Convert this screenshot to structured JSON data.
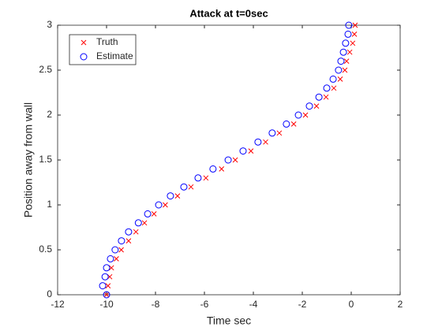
{
  "chart_data": {
    "type": "scatter",
    "title": "Attack at t=0sec",
    "x_label": "Time sec",
    "y_label": "Position away from wall",
    "xlim": [
      -12,
      2
    ],
    "ylim": [
      0,
      3
    ],
    "xticks": [
      -12,
      -10,
      -8,
      -6,
      -4,
      -2,
      0,
      2
    ],
    "yticks": [
      0,
      0.5,
      1,
      1.5,
      2,
      2.5,
      3
    ],
    "legend": "upper left",
    "grid": false,
    "series": [
      {
        "name": "Truth",
        "color": "#ff0000",
        "marker": "x",
        "x": [
          -10.0,
          -9.94,
          -9.87,
          -9.8,
          -9.6,
          -9.4,
          -9.1,
          -8.8,
          -8.45,
          -8.06,
          -7.6,
          -7.1,
          -6.55,
          -5.94,
          -5.3,
          -4.74,
          -4.1,
          -3.5,
          -2.94,
          -2.35,
          -1.87,
          -1.42,
          -1.03,
          -0.71,
          -0.45,
          -0.26,
          -0.19,
          -0.06,
          0.06,
          0.13,
          0.16
        ],
        "y": [
          0,
          0.1,
          0.2,
          0.3,
          0.4,
          0.5,
          0.6,
          0.7,
          0.8,
          0.9,
          1.0,
          1.1,
          1.2,
          1.3,
          1.4,
          1.5,
          1.6,
          1.7,
          1.8,
          1.9,
          2.0,
          2.1,
          2.2,
          2.3,
          2.4,
          2.5,
          2.6,
          2.7,
          2.8,
          2.9,
          3.0
        ]
      },
      {
        "name": "Estimate",
        "color": "#0000ff",
        "marker": "o",
        "x": [
          -10.0,
          -10.16,
          -10.06,
          -10.0,
          -9.84,
          -9.65,
          -9.39,
          -9.1,
          -8.7,
          -8.32,
          -7.87,
          -7.39,
          -6.84,
          -6.26,
          -5.65,
          -5.03,
          -4.42,
          -3.81,
          -3.23,
          -2.65,
          -2.16,
          -1.71,
          -1.32,
          -1.0,
          -0.74,
          -0.52,
          -0.42,
          -0.32,
          -0.23,
          -0.13,
          -0.1
        ],
        "y": [
          0,
          0.1,
          0.2,
          0.3,
          0.4,
          0.5,
          0.6,
          0.7,
          0.8,
          0.9,
          1.0,
          1.1,
          1.2,
          1.3,
          1.4,
          1.5,
          1.6,
          1.7,
          1.8,
          1.9,
          2.0,
          2.1,
          2.2,
          2.3,
          2.4,
          2.5,
          2.6,
          2.7,
          2.8,
          2.9,
          3.0
        ]
      }
    ]
  }
}
